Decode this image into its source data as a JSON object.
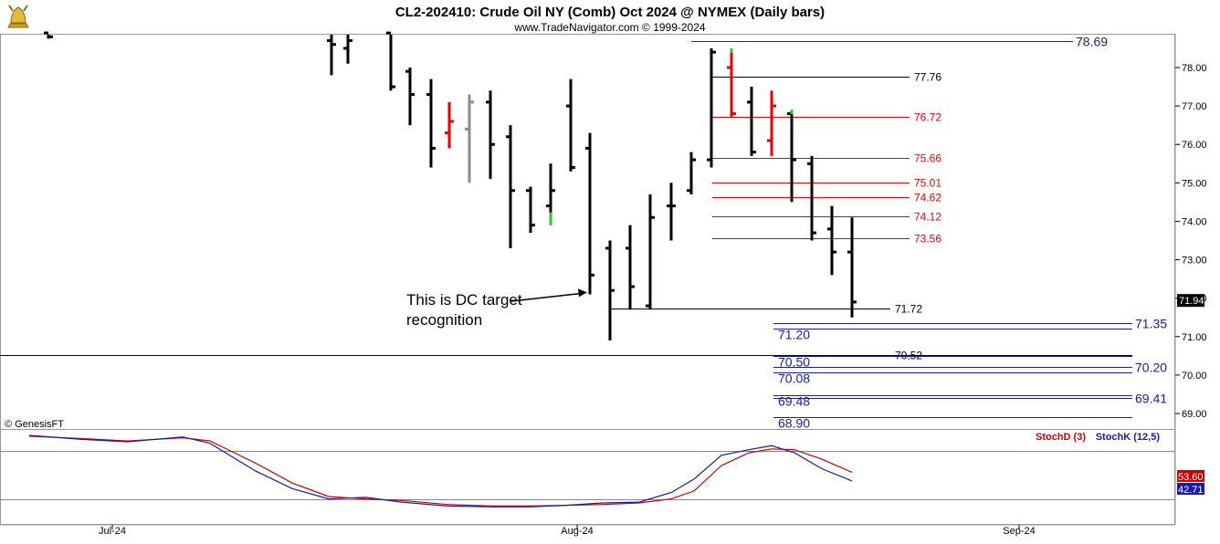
{
  "header": {
    "title": "CL2-202410:  Crude Oil NY (Comb) Oct 2024 @ NYMEX  (Daily bars)",
    "subtitle": "www.TradeNavigator.com © 1999-2024",
    "watermark": "© GenesisFT",
    "logo_icon": "gold-bull-icon"
  },
  "chart_data": [
    {
      "type": "ohlc",
      "ylim": [
        68.6,
        78.9
      ],
      "yticks": [
        "78.00",
        "77.00",
        "76.00",
        "75.00",
        "74.00",
        "73.00",
        "72.00",
        "71.00",
        "70.00",
        "69.00"
      ],
      "last_price_label": "71.94",
      "bars": [
        {
          "x": 53,
          "o": 78.9,
          "h": 78.9,
          "l": 78.75,
          "c": 78.8,
          "color": "#000000"
        },
        {
          "x": 363,
          "o": 78.7,
          "h": 78.9,
          "l": 77.8,
          "c": 78.6,
          "color": "#000000"
        },
        {
          "x": 381,
          "o": 78.5,
          "h": 78.9,
          "l": 78.1,
          "c": 78.7,
          "color": "#000000"
        },
        {
          "x": 428,
          "o": 78.9,
          "h": 78.9,
          "l": 77.4,
          "c": 77.5,
          "color": "#000000"
        },
        {
          "x": 449,
          "o": 77.9,
          "h": 78.0,
          "l": 76.5,
          "c": 77.3,
          "color": "#000000"
        },
        {
          "x": 472,
          "o": 77.3,
          "h": 77.7,
          "l": 75.4,
          "c": 75.9,
          "color": "#000000"
        },
        {
          "x": 492,
          "o": 76.3,
          "h": 77.1,
          "l": 75.9,
          "c": 76.6,
          "color": "#ee0000"
        },
        {
          "x": 514,
          "o": 76.4,
          "h": 77.3,
          "l": 75.0,
          "c": 77.1,
          "color": "#8c8c8c"
        },
        {
          "x": 537,
          "o": 77.1,
          "h": 77.4,
          "l": 75.1,
          "c": 76.0,
          "color": "#000000"
        },
        {
          "x": 559,
          "o": 76.2,
          "h": 76.5,
          "l": 73.3,
          "c": 74.8,
          "color": "#000000"
        },
        {
          "x": 581,
          "o": 74.8,
          "h": 74.9,
          "l": 73.7,
          "c": 73.9,
          "color": "#000000"
        },
        {
          "x": 603,
          "o": 74.4,
          "h": 75.5,
          "l": 73.9,
          "c": 74.8,
          "color": "#000000",
          "low_tick_color": "#22cc22"
        },
        {
          "x": 625,
          "o": 77.0,
          "h": 77.7,
          "l": 75.3,
          "c": 75.4,
          "color": "#000000"
        },
        {
          "x": 646,
          "o": 75.9,
          "h": 76.3,
          "l": 72.1,
          "c": 72.6,
          "color": "#000000"
        },
        {
          "x": 668,
          "o": 73.3,
          "h": 73.5,
          "l": 70.9,
          "c": 72.2,
          "color": "#000000"
        },
        {
          "x": 690,
          "o": 73.3,
          "h": 73.9,
          "l": 71.7,
          "c": 72.3,
          "color": "#000000"
        },
        {
          "x": 712,
          "o": 71.8,
          "h": 74.7,
          "l": 71.7,
          "c": 74.1,
          "color": "#000000"
        },
        {
          "x": 735,
          "o": 74.4,
          "h": 75.0,
          "l": 73.5,
          "c": 74.4,
          "color": "#000000"
        },
        {
          "x": 757,
          "o": 74.8,
          "h": 75.8,
          "l": 74.7,
          "c": 75.6,
          "color": "#000000"
        },
        {
          "x": 779,
          "o": 75.6,
          "h": 78.5,
          "l": 75.4,
          "c": 78.4,
          "color": "#000000"
        },
        {
          "x": 801,
          "o": 78.0,
          "h": 78.5,
          "l": 76.7,
          "c": 76.8,
          "color": "#ee0000",
          "high_tick_color": "#22cc22"
        },
        {
          "x": 823,
          "o": 77.1,
          "h": 77.5,
          "l": 75.7,
          "c": 75.8,
          "color": "#000000"
        },
        {
          "x": 845,
          "o": 76.1,
          "h": 77.4,
          "l": 75.7,
          "c": 77.0,
          "color": "#ee0000"
        },
        {
          "x": 867,
          "o": 76.8,
          "h": 76.9,
          "l": 74.5,
          "c": 75.6,
          "color": "#000000",
          "high_tick_color": "#22cc22"
        },
        {
          "x": 889,
          "o": 75.5,
          "h": 75.7,
          "l": 73.5,
          "c": 73.7,
          "color": "#000000"
        },
        {
          "x": 911,
          "o": 73.8,
          "h": 74.4,
          "l": 72.6,
          "c": 73.2,
          "color": "#000000"
        },
        {
          "x": 933,
          "o": 73.2,
          "h": 74.1,
          "l": 71.5,
          "c": 71.9,
          "color": "#000000"
        }
      ],
      "levels": [
        {
          "value": 78.69,
          "label": "78.69",
          "color": "#1a1aaa",
          "side": "right-blue"
        },
        {
          "value": 77.76,
          "label": "77.76",
          "color": "#000000",
          "side": "mid"
        },
        {
          "value": 76.72,
          "label": "76.72",
          "color": "#ee0000",
          "side": "mid"
        },
        {
          "value": 75.66,
          "label": "75.66",
          "color": "#ee0000",
          "side": "mid"
        },
        {
          "value": 75.01,
          "label": "75.01",
          "color": "#ee0000",
          "side": "mid"
        },
        {
          "value": 74.62,
          "label": "74.62",
          "color": "#ee0000",
          "side": "mid"
        },
        {
          "value": 74.12,
          "label": "74.12",
          "color": "#ee0000",
          "side": "mid"
        },
        {
          "value": 73.56,
          "label": "73.56",
          "color": "#ee0000",
          "side": "mid"
        },
        {
          "value": 71.72,
          "label": "71.72",
          "color": "#000000",
          "side": "mid"
        },
        {
          "value": 71.35,
          "label": "71.35",
          "color": "#1a1aaa",
          "side": "right-blue"
        },
        {
          "value": 71.2,
          "label": "71.20",
          "color": "#1a1aaa",
          "side": "left-blue"
        },
        {
          "value": 70.52,
          "label": "70.52",
          "color": "#000000",
          "side": "mid"
        },
        {
          "value": 70.5,
          "label": "70.50",
          "color": "#1a1aaa",
          "side": "left-blue"
        },
        {
          "value": 70.2,
          "label": "70.20",
          "color": "#1a1aaa",
          "side": "right-blue"
        },
        {
          "value": 70.08,
          "label": "70.08",
          "color": "#1a1aaa",
          "side": "left-blue"
        },
        {
          "value": 69.48,
          "label": "69.48",
          "color": "#1a1aaa",
          "side": "left-blue"
        },
        {
          "value": 69.41,
          "label": "69.41",
          "color": "#1a1aaa",
          "side": "right-blue"
        },
        {
          "value": 68.9,
          "label": "68.90",
          "color": "#1a1aaa",
          "side": "left-blue"
        }
      ],
      "annotation": {
        "lines": [
          "This is DC target",
          "recognition"
        ],
        "arrow_to_x": 646,
        "arrow_to_value": 72.15
      }
    },
    {
      "type": "line",
      "ylim": [
        0,
        100
      ],
      "legend": [
        {
          "name": "StochD (3)",
          "color": "#cc0000"
        },
        {
          "name": "StochK (12,5)",
          "color": "#1a1aaa"
        }
      ],
      "reference_lines": [
        80,
        20
      ],
      "series": [
        {
          "name": "StochD (3)",
          "color": "#cc0000",
          "last_label": "53.60",
          "points": [
            [
              32,
              99
            ],
            [
              90,
              96
            ],
            [
              140,
              93
            ],
            [
              200,
              97
            ],
            [
              230,
              93
            ],
            [
              280,
              65
            ],
            [
              320,
              40
            ],
            [
              360,
              23
            ],
            [
              400,
              20
            ],
            [
              440,
              18
            ],
            [
              490,
              13
            ],
            [
              540,
              11
            ],
            [
              580,
              11
            ],
            [
              620,
              12
            ],
            [
              660,
              13
            ],
            [
              700,
              15
            ],
            [
              735,
              20
            ],
            [
              760,
              30
            ],
            [
              790,
              62
            ],
            [
              820,
              78
            ],
            [
              845,
              83
            ],
            [
              870,
              82
            ],
            [
              900,
              70
            ],
            [
              933,
              53.6
            ]
          ]
        },
        {
          "name": "StochK (12,5)",
          "color": "#1a1aaa",
          "last_label": "42.71",
          "points": [
            [
              32,
              100
            ],
            [
              90,
              95
            ],
            [
              140,
              92
            ],
            [
              200,
              98
            ],
            [
              230,
              90
            ],
            [
              280,
              55
            ],
            [
              320,
              33
            ],
            [
              360,
              20
            ],
            [
              400,
              22
            ],
            [
              440,
              16
            ],
            [
              490,
              11
            ],
            [
              540,
              10
            ],
            [
              580,
              10
            ],
            [
              620,
              12
            ],
            [
              660,
              15
            ],
            [
              700,
              16
            ],
            [
              735,
              28
            ],
            [
              760,
              45
            ],
            [
              790,
              75
            ],
            [
              820,
              82
            ],
            [
              845,
              87
            ],
            [
              870,
              78
            ],
            [
              900,
              58
            ],
            [
              933,
              42.7
            ]
          ]
        }
      ]
    }
  ],
  "xaxis": {
    "labels": [
      {
        "text": "Jul-24",
        "x": 123
      },
      {
        "text": "Aug-24",
        "x": 632
      },
      {
        "text": "Sep-24",
        "x": 1116
      }
    ]
  }
}
